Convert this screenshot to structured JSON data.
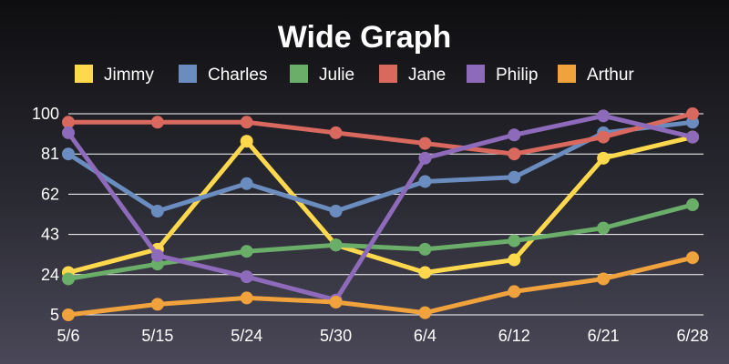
{
  "chart_data": {
    "type": "line",
    "title": "Wide Graph",
    "xlabel": "",
    "ylabel": "",
    "categories": [
      "5/6",
      "5/15",
      "5/24",
      "5/30",
      "6/4",
      "6/12",
      "6/21",
      "6/28"
    ],
    "y_ticks": [
      "5",
      "24",
      "43",
      "62",
      "81",
      "100"
    ],
    "ylim": [
      5,
      100
    ],
    "grid": true,
    "legend": "top",
    "series": [
      {
        "name": "Jimmy",
        "color": "#ffd84d",
        "values": [
          25,
          36,
          87,
          38,
          25,
          31,
          79,
          89
        ]
      },
      {
        "name": "Charles",
        "color": "#6b8cbe",
        "values": [
          81,
          54,
          67,
          54,
          68,
          70,
          91,
          96
        ]
      },
      {
        "name": "Julie",
        "color": "#6aae6a",
        "values": [
          22,
          29,
          35,
          38,
          36,
          40,
          46,
          57
        ]
      },
      {
        "name": "Jane",
        "color": "#d9695f",
        "values": [
          96,
          96,
          96,
          91,
          86,
          81,
          89,
          100
        ]
      },
      {
        "name": "Philip",
        "color": "#8e6bba",
        "values": [
          91,
          33,
          23,
          12,
          79,
          90,
          99,
          89
        ]
      },
      {
        "name": "Arthur",
        "color": "#f0a23c",
        "values": [
          5,
          10,
          13,
          11,
          6,
          16,
          22,
          32
        ]
      }
    ]
  }
}
